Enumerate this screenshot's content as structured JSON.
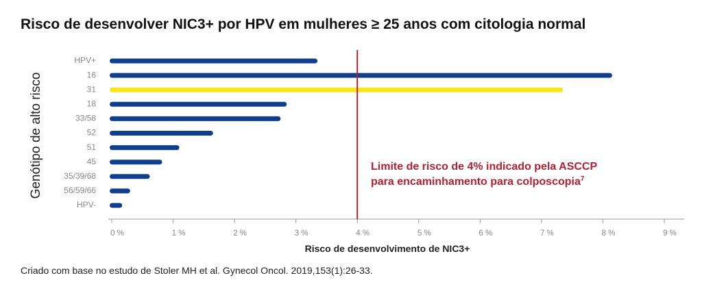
{
  "title": "Risco de desenvolver NIC3+ por HPV em mulheres ≥ 25 anos com citologia normal",
  "source": "Criado com base no estudo de Stoler MH et al. Gynecol Oncol. 2019,153(1):26-33.",
  "chart_data": {
    "type": "bar",
    "orientation": "horizontal",
    "title": "Risco de desenvolver NIC3+ por HPV em mulheres ≥ 25 anos com citologia normal",
    "ylabel": "Genótipo de alto risco",
    "xlabel": "Risco de desenvolvimento de NIC3+",
    "categories": [
      "HPV+",
      "16",
      "31",
      "18",
      "33/58",
      "52",
      "51",
      "45",
      "35/39/68",
      "56/59/66",
      "HPV-"
    ],
    "values": [
      3.35,
      8.15,
      7.35,
      2.85,
      2.75,
      1.65,
      1.1,
      0.82,
      0.62,
      0.3,
      0.17
    ],
    "highlight_category": "31",
    "xlim": [
      0,
      9
    ],
    "xticks": [
      "0 %",
      "1 %",
      "2 %",
      "3 %",
      "4 %",
      "5 %",
      "6 %",
      "7 %",
      "8 %",
      "9 %"
    ],
    "reference_line": {
      "value": 4,
      "label_line1": "Limite de risco de 4% indicado pela ASCCP",
      "label_line2": "para encaminhamento para colposcopia",
      "superscript": "7"
    },
    "colors": {
      "bar": "#0f3f8c",
      "highlight": "#f7e51e",
      "reference": "#b22230",
      "axis": "#9a9a9a"
    }
  }
}
